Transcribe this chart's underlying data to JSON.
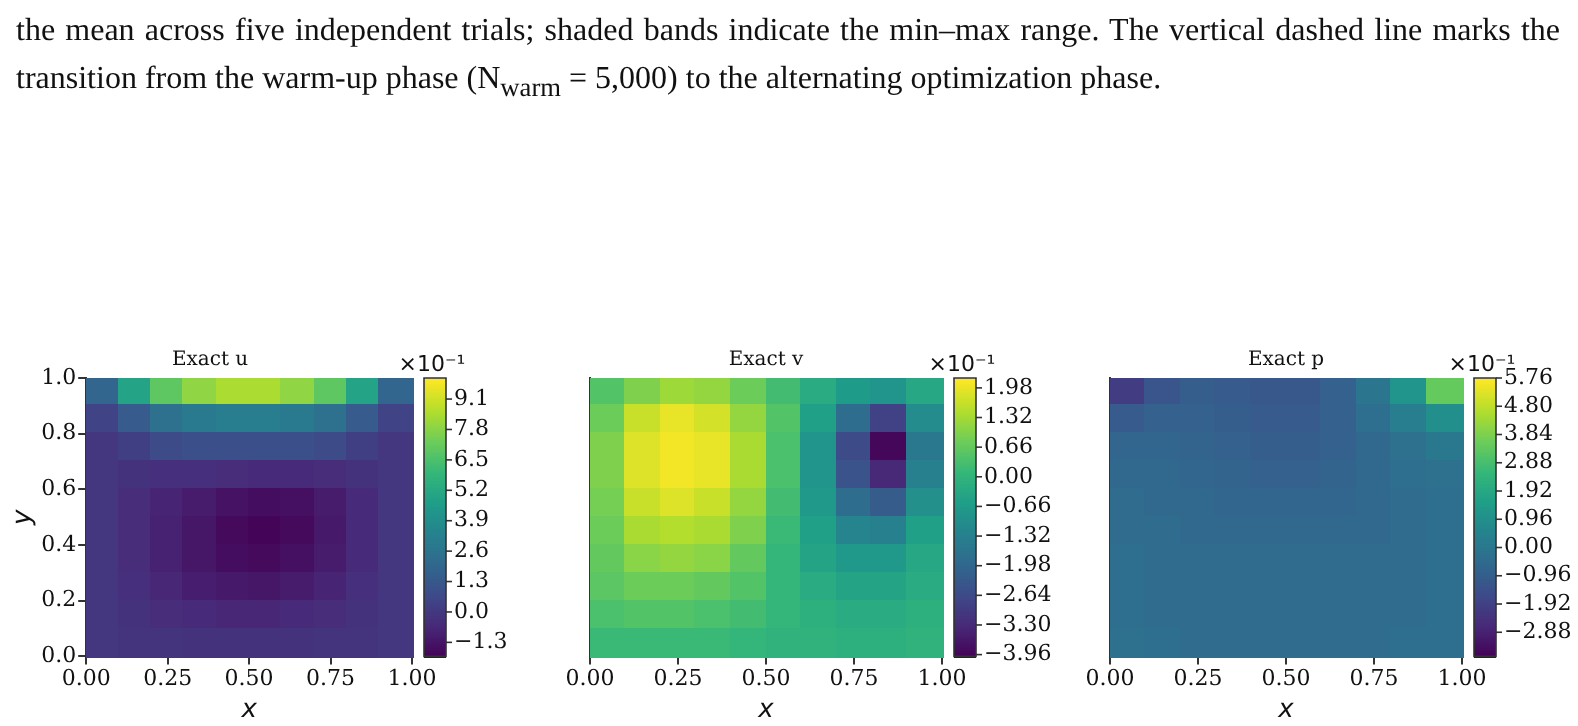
{
  "chart_data": [
    {
      "type": "heatmap",
      "title": "Exact u",
      "xlabel": "x",
      "ylabel": "y",
      "clabel": "×10⁻¹",
      "annotations": [
        "the mean across five independent trials; shaded bands indicate the min–max range. The vertical dashed line marks the transition from the warm-up phase (N$_{warm}$ = 5,000) to the alternating optimization phase."
      ],
      "xlim": [
        0,
        1
      ],
      "ylim": [
        0,
        1
      ],
      "xticks": [
        {
          "value": 0,
          "label": "0.00"
        },
        {
          "value": 0.25,
          "label": "0.25"
        },
        {
          "value": 0.5,
          "label": "0.50"
        },
        {
          "value": 0.75,
          "label": "0.75"
        },
        {
          "value": 1,
          "label": "1.00"
        }
      ],
      "yticks": [
        {
          "value": 0,
          "label": "0.0"
        },
        0.2,
        0.4,
        0.6,
        0.8,
        {
          "value": 1,
          "label": "1.0"
        }
      ],
      "clim": [
        -1.9,
        10
      ],
      "cticks": [
        -1.3,
        {
          "value": 0,
          "label": "0.0"
        },
        1.3,
        2.6,
        3.9,
        5.2,
        6.5,
        7.8,
        9.1
      ],
      "cells": [
        [
          2,
          5,
          7,
          8,
          8.5,
          8.5,
          8,
          7,
          5,
          2
        ],
        [
          0.5,
          1.5,
          2.5,
          3,
          3.2,
          3.2,
          3,
          2.5,
          1.5,
          0.5
        ],
        [
          0,
          0.3,
          0.8,
          1,
          1,
          1,
          1,
          0.8,
          0.3,
          0
        ],
        [
          0,
          -0.2,
          -0.3,
          -0.3,
          -0.4,
          -0.5,
          -0.5,
          -0.4,
          -0.2,
          0
        ],
        [
          0,
          -0.4,
          -0.7,
          -1,
          -1.3,
          -1.5,
          -1.4,
          -1,
          -0.5,
          0
        ],
        [
          0,
          -0.4,
          -0.8,
          -1.2,
          -1.6,
          -1.8,
          -1.6,
          -1.1,
          -0.5,
          0
        ],
        [
          0,
          -0.4,
          -0.8,
          -1.2,
          -1.5,
          -1.6,
          -1.4,
          -1,
          -0.5,
          0
        ],
        [
          0,
          -0.3,
          -0.6,
          -0.9,
          -1.1,
          -1.2,
          -1,
          -0.7,
          -0.3,
          0
        ],
        [
          0,
          -0.2,
          -0.4,
          -0.5,
          -0.6,
          -0.6,
          -0.5,
          -0.4,
          -0.2,
          0
        ],
        [
          0,
          -0.1,
          -0.1,
          -0.2,
          -0.2,
          -0.2,
          -0.2,
          -0.1,
          -0.1,
          0
        ]
      ]
    },
    {
      "type": "heatmap",
      "title": "Exact v",
      "xlabel": "x",
      "clabel": "×10⁻¹",
      "tick_labels": "x",
      "xlim": [
        0,
        1
      ],
      "ylim": [
        0,
        1
      ],
      "xticks": [
        {
          "value": 0,
          "label": "0.00"
        },
        {
          "value": 0.25,
          "label": "0.25"
        },
        {
          "value": 0.5,
          "label": "0.50"
        },
        {
          "value": 0.75,
          "label": "0.75"
        },
        {
          "value": 1,
          "label": "1.00"
        }
      ],
      "clim": [
        -4,
        2.2
      ],
      "cticks": [
        -3.96,
        {
          "value": -3.3,
          "label": "−3.30"
        },
        -2.64,
        -1.98,
        -1.32,
        -0.66,
        {
          "value": 0,
          "label": "0.00"
        },
        0.66,
        1.32,
        1.98
      ],
      "cells": [
        [
          0.5,
          1,
          1.3,
          1.2,
          0.8,
          0.3,
          -0.2,
          -0.6,
          -0.8,
          -0.3
        ],
        [
          0.8,
          1.7,
          2,
          1.8,
          1.2,
          0.5,
          -0.5,
          -1.8,
          -2.8,
          -1
        ],
        [
          1,
          1.9,
          2.1,
          2,
          1.4,
          0.4,
          -0.8,
          -2.6,
          -3.9,
          -1.5
        ],
        [
          1,
          1.9,
          2.1,
          2,
          1.4,
          0.4,
          -0.8,
          -2.4,
          -3.3,
          -1.3
        ],
        [
          0.9,
          1.7,
          1.9,
          1.7,
          1.2,
          0.3,
          -0.7,
          -1.8,
          -2.2,
          -0.9
        ],
        [
          0.8,
          1.4,
          1.5,
          1.4,
          1,
          0.2,
          -0.5,
          -1.2,
          -1.3,
          -0.5
        ],
        [
          0.7,
          1.1,
          1.2,
          1.1,
          0.7,
          0.1,
          -0.4,
          -0.7,
          -0.7,
          -0.3
        ],
        [
          0.6,
          0.8,
          0.8,
          0.7,
          0.5,
          0.1,
          -0.2,
          -0.4,
          -0.4,
          -0.2
        ],
        [
          0.4,
          0.5,
          0.5,
          0.4,
          0.3,
          0.1,
          -0.1,
          -0.2,
          -0.2,
          -0.1
        ],
        [
          0.2,
          0.2,
          0.2,
          0.2,
          0.1,
          0,
          0,
          -0.1,
          -0.1,
          0
        ]
      ]
    },
    {
      "type": "heatmap",
      "title": "Exact p",
      "xlabel": "x",
      "clabel": "×10⁻¹",
      "tick_labels": "x",
      "xlim": [
        0,
        1
      ],
      "ylim": [
        0,
        1
      ],
      "xticks": [
        {
          "value": 0,
          "label": "0.00"
        },
        {
          "value": 0.25,
          "label": "0.25"
        },
        {
          "value": 0.5,
          "label": "0.50"
        },
        {
          "value": 0.75,
          "label": "0.75"
        },
        {
          "value": 1,
          "label": "1.00"
        }
      ],
      "clim": [
        -3.7,
        5.76
      ],
      "cticks": [
        -2.88,
        -1.92,
        -0.96,
        {
          "value": 0,
          "label": "0.00"
        },
        0.96,
        1.92,
        2.88,
        3.84,
        {
          "value": 4.8,
          "label": "4.80"
        },
        5.76
      ],
      "cells": [
        [
          -2,
          -1.2,
          -0.9,
          -1,
          -1.1,
          -1.1,
          -0.8,
          0,
          1.2,
          3.5
        ],
        [
          -1,
          -0.8,
          -0.8,
          -0.9,
          -1,
          -1,
          -0.8,
          -0.3,
          0.3,
          1
        ],
        [
          -0.6,
          -0.6,
          -0.7,
          -0.8,
          -0.9,
          -0.9,
          -0.8,
          -0.5,
          -0.2,
          0.1
        ],
        [
          -0.5,
          -0.5,
          -0.6,
          -0.7,
          -0.8,
          -0.8,
          -0.7,
          -0.5,
          -0.3,
          -0.2
        ],
        [
          -0.4,
          -0.5,
          -0.5,
          -0.6,
          -0.6,
          -0.6,
          -0.6,
          -0.5,
          -0.4,
          -0.3
        ],
        [
          -0.4,
          -0.4,
          -0.5,
          -0.5,
          -0.5,
          -0.5,
          -0.5,
          -0.5,
          -0.4,
          -0.3
        ],
        [
          -0.3,
          -0.4,
          -0.4,
          -0.4,
          -0.4,
          -0.4,
          -0.4,
          -0.4,
          -0.4,
          -0.3
        ],
        [
          -0.3,
          -0.4,
          -0.4,
          -0.4,
          -0.4,
          -0.4,
          -0.4,
          -0.4,
          -0.4,
          -0.3
        ],
        [
          -0.3,
          -0.4,
          -0.4,
          -0.4,
          -0.4,
          -0.4,
          -0.4,
          -0.4,
          -0.4,
          -0.3
        ],
        [
          -0.2,
          -0.3,
          -0.4,
          -0.4,
          -0.4,
          -0.4,
          -0.4,
          -0.4,
          -0.3,
          -0.3
        ]
      ]
    }
  ]
}
